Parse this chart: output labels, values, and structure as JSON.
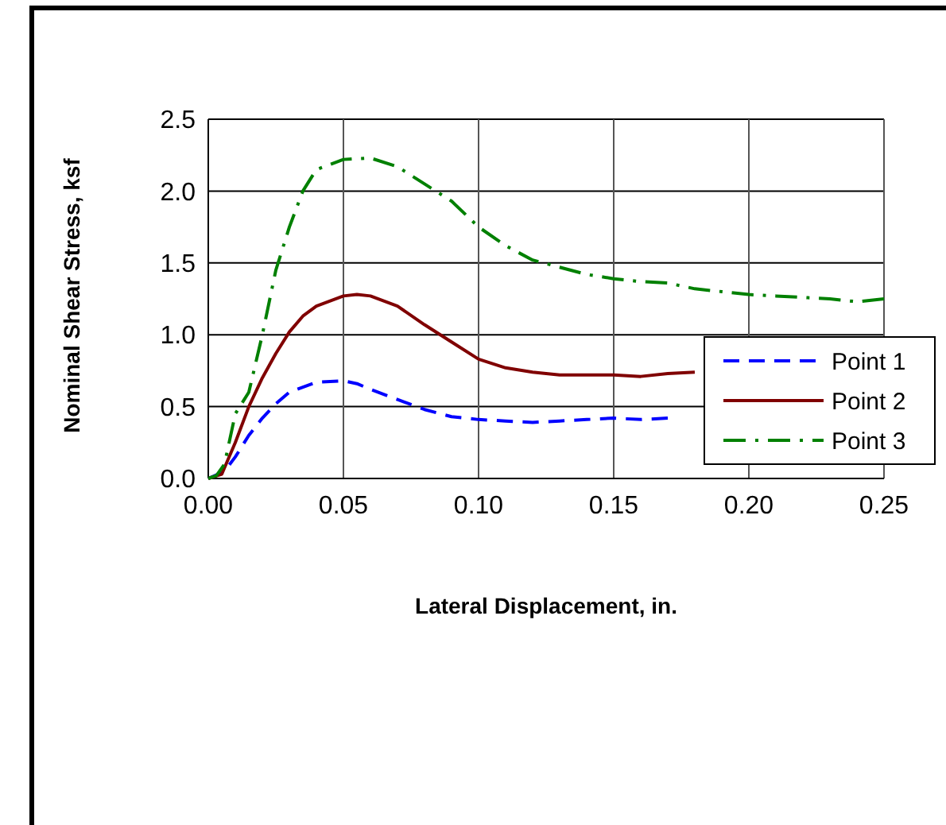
{
  "chart_data": {
    "type": "line",
    "xlabel": "Lateral Displacement, in.",
    "ylabel": "Nominal Shear Stress, ksf",
    "xlim": [
      0,
      0.25
    ],
    "xticks": [
      {
        "value": 0,
        "label": "0.00"
      },
      {
        "value": 0.05,
        "label": "0.05"
      },
      {
        "value": 0.1,
        "label": "0.10"
      },
      {
        "value": 0.15,
        "label": "0.15"
      },
      {
        "value": 0.2,
        "label": "0.20"
      },
      {
        "value": 0.25,
        "label": "0.25"
      }
    ],
    "ylim": [
      0,
      2.5
    ],
    "yticks": [
      {
        "value": 0,
        "label": "0.0"
      },
      {
        "value": 0.5,
        "label": "0.5"
      },
      {
        "value": 1,
        "label": "1.0"
      },
      {
        "value": 1.5,
        "label": "1.5"
      },
      {
        "value": 2,
        "label": "2.0"
      },
      {
        "value": 2.5,
        "label": "2.5"
      }
    ],
    "grid": true,
    "legend": "right",
    "marker": "none",
    "series": [
      {
        "name": "Point 1",
        "color": "#0000ff",
        "line_style": "dashed",
        "x": [
          0,
          0.006,
          0.01,
          0.015,
          0.02,
          0.025,
          0.03,
          0.04,
          0.05,
          0.055,
          0.06,
          0.07,
          0.08,
          0.09,
          0.1,
          0.11,
          0.12,
          0.13,
          0.14,
          0.15,
          0.16,
          0.17
        ],
        "values": [
          0,
          0.05,
          0.15,
          0.3,
          0.42,
          0.52,
          0.6,
          0.67,
          0.68,
          0.66,
          0.62,
          0.55,
          0.48,
          0.43,
          0.41,
          0.4,
          0.39,
          0.4,
          0.41,
          0.42,
          0.41,
          0.42
        ]
      },
      {
        "name": "Point 2",
        "color": "#800000",
        "line_style": "solid",
        "x": [
          0,
          0.005,
          0.01,
          0.015,
          0.02,
          0.025,
          0.03,
          0.035,
          0.04,
          0.05,
          0.055,
          0.06,
          0.07,
          0.08,
          0.09,
          0.1,
          0.11,
          0.12,
          0.13,
          0.14,
          0.15,
          0.16,
          0.17,
          0.18
        ],
        "values": [
          0,
          0.03,
          0.25,
          0.5,
          0.7,
          0.87,
          1.02,
          1.13,
          1.2,
          1.27,
          1.28,
          1.27,
          1.2,
          1.07,
          0.95,
          0.83,
          0.77,
          0.74,
          0.72,
          0.72,
          0.72,
          0.71,
          0.73,
          0.74
        ]
      },
      {
        "name": "Point 3",
        "color": "#008000",
        "line_style": "dashdot",
        "x": [
          0,
          0.003,
          0.006,
          0.01,
          0.015,
          0.02,
          0.025,
          0.03,
          0.035,
          0.04,
          0.05,
          0.06,
          0.07,
          0.08,
          0.09,
          0.1,
          0.11,
          0.12,
          0.13,
          0.14,
          0.15,
          0.16,
          0.17,
          0.18,
          0.19,
          0.2,
          0.21,
          0.22,
          0.23,
          0.24,
          0.25
        ],
        "values": [
          0,
          0.02,
          0.1,
          0.45,
          0.6,
          1.0,
          1.45,
          1.75,
          2.0,
          2.15,
          2.22,
          2.23,
          2.17,
          2.05,
          1.93,
          1.75,
          1.62,
          1.52,
          1.47,
          1.42,
          1.39,
          1.37,
          1.36,
          1.32,
          1.3,
          1.28,
          1.27,
          1.26,
          1.25,
          1.23,
          1.25
        ]
      }
    ]
  }
}
